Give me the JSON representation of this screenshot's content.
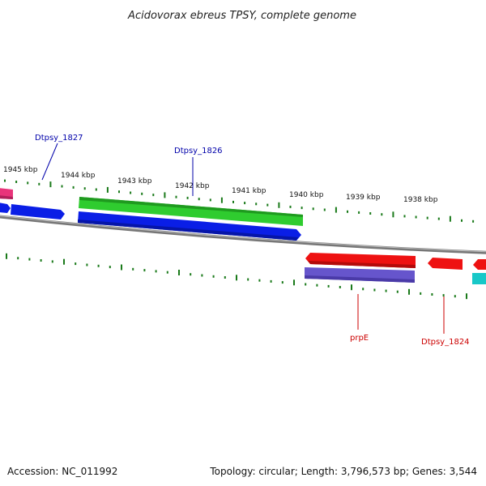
{
  "title": "Acidovorax ebreus TPSY, complete genome",
  "footer": {
    "accession": "Accession: NC_011992",
    "topology": "Topology: circular; Length: 3,796,573 bp; Genes: 3,544"
  },
  "scale_labels": [
    "1945 kbp",
    "1944 kbp",
    "1943 kbp",
    "1942 kbp",
    "1941 kbp",
    "1940 kbp",
    "1939 kbp",
    "1938 kbp"
  ],
  "gene_labels": [
    "Dtpsy_1827",
    "Dtpsy_1826",
    "prpE",
    "Dtpsy_1824"
  ],
  "colors": {
    "forward_label": "#0000aa",
    "reverse_label": "#cc0000",
    "tick": "#1a7a1a",
    "backbone": "#888888",
    "green": "#2fcc2f",
    "blue": "#0a1ee6",
    "red": "#ee1111",
    "purple": "#6655cc",
    "pink": "#e8347a",
    "cyan": "#18c8c8"
  }
}
